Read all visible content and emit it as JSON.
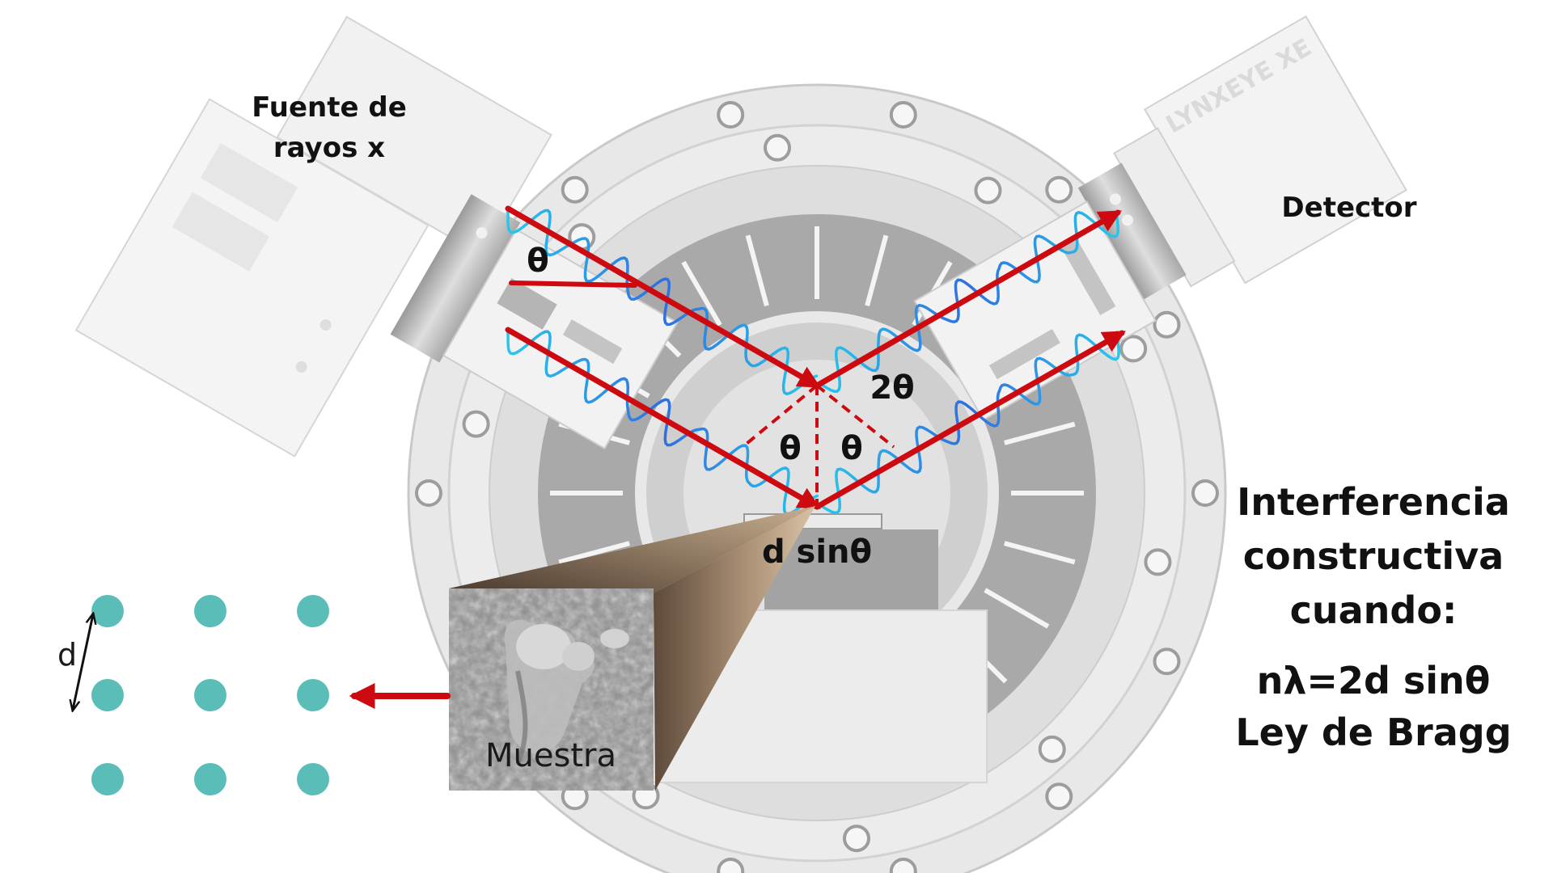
{
  "labels": {
    "source": [
      "Fuente de",
      "rayos x"
    ],
    "detector_brand": "LYNXEYE XE",
    "detector": "Detector",
    "theta": "θ",
    "two_theta": "2θ",
    "path_difference": "d sinθ",
    "sample": "Muestra",
    "lattice_spacing": "d"
  },
  "condition": {
    "lines": [
      "Interferencia",
      "constructiva",
      "cuando:"
    ],
    "equation": "nλ=2d sinθ",
    "law_name": "Ley de Bragg"
  },
  "colors": {
    "ray": "#cc0a10",
    "wave_light": "#27c7ec",
    "wave_dark": "#2f6fe0",
    "atom": "#5bbdb8",
    "chamber": "#e6e6e6",
    "chamber_dark": "#bdbdbd"
  },
  "lattice": {
    "rows": 3,
    "columns": 3
  }
}
